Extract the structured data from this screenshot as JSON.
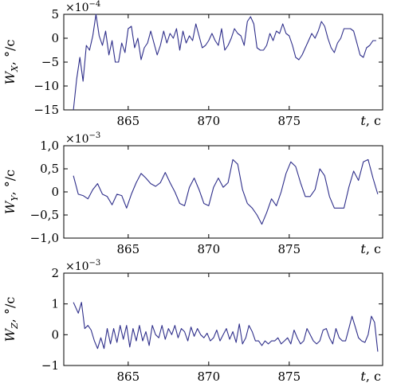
{
  "chart_data": [
    {
      "type": "line",
      "ylabel_var": "W",
      "ylabel_sub": "X",
      "ylabel_unit": ", °/c",
      "xlabel_var": "t",
      "xlabel_unit": ", c",
      "scale_base": "×10",
      "scale_exp": "−4",
      "xlim": [
        861,
        880.8
      ],
      "ylim": [
        -15,
        5
      ],
      "yticks": [
        5,
        0,
        -5,
        -10,
        -15
      ],
      "ytick_labels": [
        "5",
        "0",
        "−5",
        "−10",
        "−15"
      ],
      "xticks": [
        865,
        870,
        875
      ],
      "xtick_labels": [
        "865",
        "870",
        "875"
      ],
      "color": "#2e2e8a",
      "series": [
        {
          "x": [
            861.6,
            861.8,
            862.0,
            862.2,
            862.4,
            862.6,
            862.8,
            863.0,
            863.2,
            863.4,
            863.6,
            863.8,
            864.0,
            864.2,
            864.4,
            864.6,
            864.8,
            865.0,
            865.2,
            865.4,
            865.6,
            865.8,
            866.0,
            866.2,
            866.4,
            866.6,
            866.8,
            867.0,
            867.2,
            867.4,
            867.6,
            867.8,
            868.0,
            868.2,
            868.4,
            868.6,
            868.8,
            869.0,
            869.2,
            869.4,
            869.6,
            869.8,
            870.0,
            870.2,
            870.4,
            870.6,
            870.8,
            871.0,
            871.2,
            871.4,
            871.6,
            871.8,
            872.0,
            872.2,
            872.4,
            872.6,
            872.8,
            873.0,
            873.2,
            873.4,
            873.6,
            873.8,
            874.0,
            874.2,
            874.4,
            874.6,
            874.8,
            875.0,
            875.2,
            875.4,
            875.6,
            875.8,
            876.0,
            876.2,
            876.4,
            876.6,
            876.8,
            877.0,
            877.2,
            877.4,
            877.6,
            877.8,
            878.0,
            878.2,
            878.4,
            878.6,
            878.8,
            879.0,
            879.2,
            879.4,
            879.6,
            879.8,
            880.0,
            880.2,
            880.4
          ],
          "y": [
            -15.0,
            -8.5,
            -4.0,
            -9.0,
            -1.5,
            -2.5,
            0.5,
            5.0,
            0.5,
            -1.5,
            1.5,
            -3.5,
            -0.5,
            -5.0,
            -5.0,
            -1.0,
            -3.0,
            2.0,
            2.5,
            -2.0,
            0.0,
            -4.5,
            -2.0,
            -1.0,
            1.5,
            -1.0,
            -3.5,
            -1.5,
            1.5,
            -1.0,
            1.0,
            0.0,
            2.0,
            -2.5,
            1.5,
            -1.0,
            0.5,
            -0.5,
            3.0,
            0.5,
            -2.0,
            -1.5,
            -0.5,
            1.0,
            -0.5,
            -1.5,
            2.0,
            -2.5,
            -1.5,
            0.0,
            2.0,
            1.0,
            0.5,
            -1.5,
            3.5,
            4.5,
            3.0,
            -2.0,
            -2.5,
            -2.5,
            -1.5,
            1.0,
            -0.5,
            1.5,
            1.0,
            3.0,
            1.0,
            0.5,
            -1.5,
            -4.0,
            -4.5,
            -3.5,
            -2.0,
            -0.5,
            1.0,
            0.0,
            1.5,
            3.5,
            2.5,
            0.0,
            -2.0,
            -3.0,
            -1.0,
            0.0,
            2.0,
            2.0,
            2.0,
            1.5,
            -1.0,
            -3.5,
            -4.0,
            -2.0,
            -1.5,
            -0.5,
            -0.5
          ]
        }
      ]
    },
    {
      "type": "line",
      "ylabel_var": "W",
      "ylabel_sub": "Y",
      "ylabel_unit": ", °/c",
      "xlabel_var": "t",
      "xlabel_unit": ", c",
      "scale_base": "×10",
      "scale_exp": "−3",
      "xlim": [
        861,
        880.8
      ],
      "ylim": [
        -1.0,
        1.0
      ],
      "yticks": [
        1.0,
        0.5,
        0,
        -0.5,
        -1.0
      ],
      "ytick_labels": [
        "1,0",
        "0,5",
        "0",
        "−0,5",
        "−1,0"
      ],
      "xticks": [
        865,
        870,
        875
      ],
      "xtick_labels": [
        "865",
        "870",
        "875"
      ],
      "color": "#2e2e8a",
      "series": [
        {
          "x": [
            861.6,
            861.9,
            862.2,
            862.5,
            862.8,
            863.1,
            863.4,
            863.7,
            864.0,
            864.3,
            864.6,
            864.9,
            865.2,
            865.5,
            865.8,
            866.1,
            866.4,
            866.7,
            867.0,
            867.3,
            867.6,
            867.9,
            868.2,
            868.5,
            868.8,
            869.1,
            869.4,
            869.7,
            870.0,
            870.3,
            870.6,
            870.9,
            871.2,
            871.5,
            871.8,
            872.1,
            872.4,
            872.7,
            873.0,
            873.3,
            873.6,
            873.9,
            874.2,
            874.5,
            874.8,
            875.1,
            875.4,
            875.7,
            876.0,
            876.3,
            876.6,
            876.9,
            877.2,
            877.5,
            877.8,
            878.1,
            878.4,
            878.7,
            879.0,
            879.3,
            879.6,
            879.9,
            880.2,
            880.5
          ],
          "y": [
            0.35,
            -0.05,
            -0.08,
            -0.15,
            0.05,
            0.18,
            -0.05,
            -0.1,
            -0.28,
            -0.05,
            -0.08,
            -0.35,
            -0.05,
            0.2,
            0.4,
            0.3,
            0.18,
            0.12,
            0.2,
            0.42,
            0.2,
            0.0,
            -0.25,
            -0.3,
            0.1,
            0.3,
            0.05,
            -0.25,
            -0.3,
            0.1,
            0.3,
            0.1,
            0.2,
            0.7,
            0.6,
            0.05,
            -0.25,
            -0.35,
            -0.5,
            -0.7,
            -0.45,
            -0.15,
            -0.3,
            0.0,
            0.4,
            0.65,
            0.55,
            0.2,
            -0.1,
            -0.1,
            0.05,
            0.5,
            0.35,
            -0.1,
            -0.35,
            -0.35,
            -0.35,
            0.1,
            0.45,
            0.25,
            0.65,
            0.7,
            0.3,
            -0.05
          ]
        }
      ]
    },
    {
      "type": "line",
      "ylabel_var": "W",
      "ylabel_sub": "Z",
      "ylabel_unit": ", °/c",
      "xlabel_var": "t",
      "xlabel_unit": ", c",
      "scale_base": "×10",
      "scale_exp": "−3",
      "xlim": [
        861,
        880.8
      ],
      "ylim": [
        -1,
        2
      ],
      "yticks": [
        2,
        1,
        0,
        -1
      ],
      "ytick_labels": [
        "2",
        "1",
        "0",
        "−1"
      ],
      "xticks": [
        865,
        870,
        875
      ],
      "xtick_labels": [
        "865",
        "870",
        "875"
      ],
      "color": "#2e2e8a",
      "series": [
        {
          "x": [
            861.6,
            861.9,
            862.1,
            862.3,
            862.5,
            862.7,
            862.9,
            863.1,
            863.3,
            863.5,
            863.7,
            863.9,
            864.1,
            864.3,
            864.5,
            864.7,
            864.9,
            865.1,
            865.3,
            865.5,
            865.7,
            865.9,
            866.1,
            866.3,
            866.5,
            866.7,
            866.9,
            867.1,
            867.3,
            867.5,
            867.7,
            867.9,
            868.1,
            868.3,
            868.5,
            868.7,
            868.9,
            869.1,
            869.3,
            869.5,
            869.7,
            869.9,
            870.1,
            870.3,
            870.5,
            870.7,
            870.9,
            871.1,
            871.3,
            871.5,
            871.7,
            871.9,
            872.1,
            872.3,
            872.5,
            872.7,
            872.9,
            873.1,
            873.3,
            873.5,
            873.7,
            873.9,
            874.1,
            874.3,
            874.5,
            874.7,
            874.9,
            875.1,
            875.3,
            875.5,
            875.7,
            875.9,
            876.1,
            876.3,
            876.5,
            876.7,
            876.9,
            877.1,
            877.3,
            877.5,
            877.7,
            877.9,
            878.1,
            878.3,
            878.5,
            878.7,
            878.9,
            879.1,
            879.3,
            879.5,
            879.7,
            879.9,
            880.1,
            880.3,
            880.5
          ],
          "y": [
            1.05,
            0.7,
            1.05,
            0.2,
            0.3,
            0.15,
            -0.2,
            -0.45,
            -0.1,
            -0.45,
            0.2,
            -0.3,
            0.2,
            -0.25,
            0.3,
            -0.15,
            0.3,
            -0.4,
            0.2,
            -0.2,
            0.3,
            -0.2,
            0.1,
            -0.35,
            0.3,
            0.0,
            -0.1,
            0.3,
            -0.15,
            0.2,
            0.0,
            0.3,
            -0.1,
            0.2,
            0.1,
            -0.2,
            0.25,
            -0.05,
            0.2,
            0.0,
            -0.1,
            0.05,
            -0.2,
            -0.1,
            0.15,
            -0.2,
            0.0,
            0.2,
            -0.15,
            0.1,
            -0.25,
            0.35,
            -0.3,
            -0.1,
            0.3,
            0.1,
            -0.2,
            -0.2,
            -0.35,
            -0.2,
            -0.3,
            -0.2,
            -0.2,
            -0.1,
            -0.3,
            -0.2,
            -0.1,
            -0.3,
            0.15,
            -0.1,
            -0.3,
            -0.2,
            0.2,
            0.0,
            -0.2,
            -0.3,
            -0.2,
            0.15,
            0.2,
            -0.1,
            -0.3,
            0.2,
            -0.1,
            -0.2,
            -0.2,
            0.2,
            0.6,
            0.25,
            -0.1,
            -0.2,
            -0.25,
            0.0,
            0.6,
            0.4,
            -0.55
          ]
        }
      ]
    }
  ]
}
